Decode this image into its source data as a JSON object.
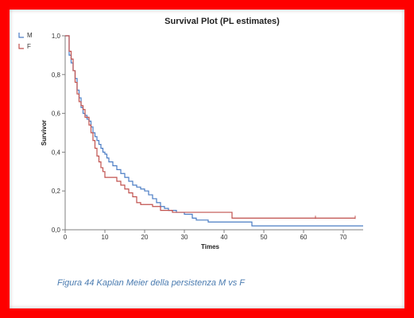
{
  "chart_data": {
    "type": "line",
    "step": true,
    "title": "Survival Plot (PL estimates)",
    "xlabel": "Times",
    "ylabel": "Survivor",
    "xlim": [
      0,
      75
    ],
    "ylim": [
      0,
      1
    ],
    "xticks": [
      0,
      10,
      20,
      30,
      40,
      50,
      60,
      70
    ],
    "yticks": [
      0,
      0.2,
      0.4,
      0.6,
      0.8,
      1.0
    ],
    "xtick_labels": [
      "0",
      "10",
      "20",
      "30",
      "40",
      "50",
      "60",
      "70"
    ],
    "ytick_labels": [
      "0,0",
      "0,2",
      "0,4",
      "0,6",
      "0,8",
      "1,0"
    ],
    "grid": false,
    "legend": "top-left",
    "series": [
      {
        "name": "M",
        "color": "#4a7cc4",
        "x": [
          0,
          1,
          1.5,
          2,
          2.5,
          3,
          3.5,
          4,
          4.5,
          5,
          5.5,
          6,
          6.5,
          7,
          7.5,
          8,
          8.5,
          9,
          9.5,
          10,
          10.5,
          11,
          12,
          13,
          14,
          15,
          16,
          17,
          18,
          19,
          20,
          21,
          22,
          23,
          24,
          25,
          26,
          27,
          28,
          30,
          32,
          33,
          36,
          38,
          40,
          47,
          50,
          75
        ],
        "y": [
          1.0,
          0.9,
          0.86,
          0.82,
          0.78,
          0.72,
          0.68,
          0.63,
          0.6,
          0.59,
          0.57,
          0.56,
          0.53,
          0.5,
          0.48,
          0.46,
          0.44,
          0.42,
          0.4,
          0.39,
          0.37,
          0.35,
          0.33,
          0.31,
          0.29,
          0.27,
          0.25,
          0.23,
          0.22,
          0.21,
          0.2,
          0.18,
          0.16,
          0.14,
          0.12,
          0.11,
          0.1,
          0.1,
          0.09,
          0.08,
          0.06,
          0.05,
          0.04,
          0.04,
          0.04,
          0.02,
          0.02,
          0.02
        ]
      },
      {
        "name": "F",
        "color": "#c0504d",
        "x": [
          0,
          1,
          1.5,
          2,
          2.5,
          3,
          3.5,
          4,
          4.5,
          5,
          6,
          6.5,
          7,
          7.5,
          8,
          8.5,
          9,
          9.5,
          10,
          12,
          13,
          14,
          15,
          16,
          17,
          18,
          19,
          20,
          22,
          23,
          24,
          25,
          27,
          30,
          32,
          42,
          63,
          73
        ],
        "y": [
          1.0,
          0.92,
          0.88,
          0.82,
          0.76,
          0.7,
          0.66,
          0.64,
          0.62,
          0.58,
          0.54,
          0.5,
          0.46,
          0.42,
          0.38,
          0.35,
          0.32,
          0.3,
          0.27,
          0.27,
          0.25,
          0.23,
          0.21,
          0.19,
          0.17,
          0.14,
          0.13,
          0.13,
          0.12,
          0.12,
          0.1,
          0.1,
          0.09,
          0.09,
          0.09,
          0.06,
          0.06,
          0.06
        ]
      }
    ]
  },
  "caption": "Figura 44 Kaplan Meier della persistenza M vs F",
  "colors": {
    "frame": "#fe0000",
    "axis": "#7f7f7f",
    "caption": "#4a7bb0"
  }
}
